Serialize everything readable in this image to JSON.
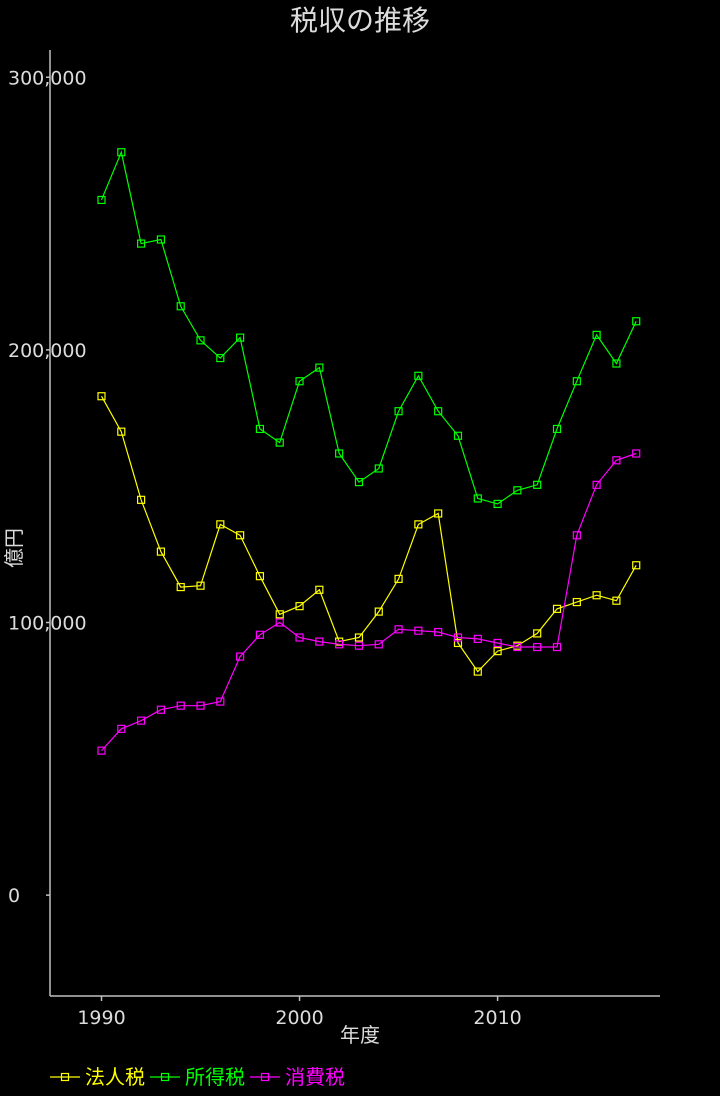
{
  "chart_data": {
    "type": "line",
    "title": "税収の推移",
    "xlabel": "年度",
    "ylabel": "億円",
    "x": [
      1990,
      1991,
      1992,
      1993,
      1994,
      1995,
      1996,
      1997,
      1998,
      1999,
      2000,
      2001,
      2002,
      2003,
      2004,
      2005,
      2006,
      2007,
      2008,
      2009,
      2010,
      2011,
      2012,
      2013,
      2014,
      2015,
      2016,
      2017
    ],
    "xlim": [
      1987.4,
      2018.2
    ],
    "ylim": [
      -37000,
      310000
    ],
    "x_ticks": [
      1990,
      2000,
      2010
    ],
    "x_tick_labels": [
      "1990",
      "2000",
      "2010"
    ],
    "y_ticks": [
      0,
      100000,
      200000,
      300000
    ],
    "y_tick_labels": [
      "0",
      "100,000",
      "200,000",
      "300,000"
    ],
    "grid": false,
    "legend_position": "bottom-left",
    "series": [
      {
        "name": "法人税",
        "color": "#ffff00",
        "marker": "square",
        "values": [
          183000,
          170000,
          145000,
          126000,
          113000,
          113500,
          136000,
          132000,
          117000,
          103000,
          106000,
          112000,
          93000,
          94500,
          104000,
          116000,
          136000,
          140000,
          92500,
          82000,
          89500,
          91500,
          96000,
          105000,
          107500,
          110000,
          108000,
          121000
        ]
      },
      {
        "name": "所得税",
        "color": "#00ff00",
        "marker": "square",
        "values": [
          255000,
          272500,
          239000,
          240500,
          216000,
          203500,
          197000,
          204500,
          171000,
          166000,
          188500,
          193500,
          162000,
          151500,
          156500,
          177500,
          190500,
          177500,
          168500,
          145500,
          143500,
          148500,
          150500,
          171000,
          188500,
          205500,
          195000,
          210500
        ]
      },
      {
        "name": "消費税",
        "color": "#ff00ff",
        "marker": "square",
        "values": [
          53000,
          61000,
          64000,
          68000,
          69500,
          69500,
          71000,
          87500,
          95500,
          100000,
          94500,
          93000,
          92000,
          91500,
          92000,
          97500,
          97000,
          96500,
          94500,
          94000,
          92500,
          91000,
          91000,
          91000,
          132000,
          150500,
          159500,
          162000
        ]
      }
    ]
  }
}
